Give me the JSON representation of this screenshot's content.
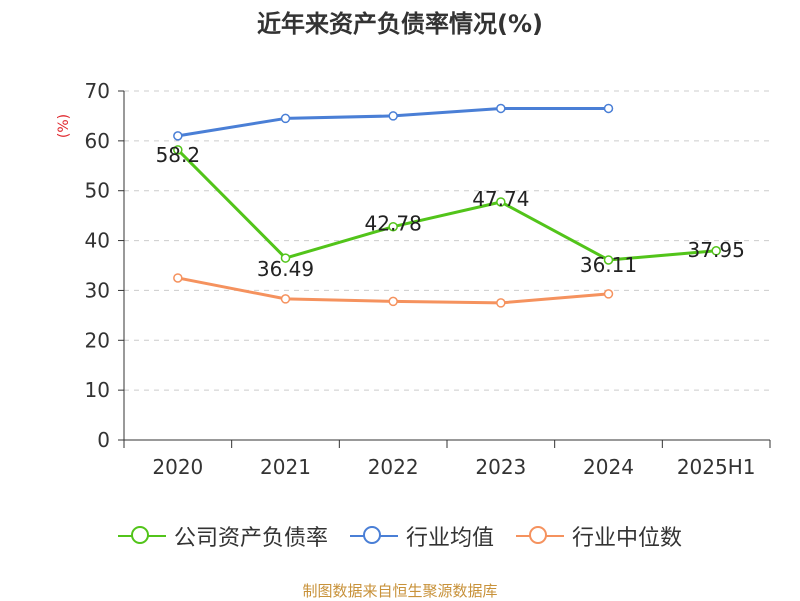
{
  "chart_data": {
    "type": "line",
    "title": "近年来资产负债率情况(%)",
    "ylabel": "(%)",
    "xlabel": "",
    "categories": [
      "2020",
      "2021",
      "2022",
      "2023",
      "2024",
      "2025H1"
    ],
    "ylim": [
      0,
      70
    ],
    "yticks": [
      0,
      10,
      20,
      30,
      40,
      50,
      60,
      70
    ],
    "grid": true,
    "legend_position": "bottom",
    "series": [
      {
        "name": "公司资产负债率",
        "color": "#52c41a",
        "values": [
          58.2,
          36.49,
          42.78,
          47.74,
          36.11,
          37.95
        ],
        "data_labels": [
          "58.2",
          "36.49",
          "42.78",
          "47.74",
          "36.11",
          "37.95"
        ]
      },
      {
        "name": "行业均值",
        "color": "#4a7fd6",
        "values": [
          61.0,
          64.5,
          65.0,
          66.5,
          66.5,
          null
        ]
      },
      {
        "name": "行业中位数",
        "color": "#f5925e",
        "values": [
          32.5,
          28.3,
          27.8,
          27.5,
          29.3,
          null
        ]
      }
    ]
  },
  "source": "制图数据来自恒生聚源数据库"
}
